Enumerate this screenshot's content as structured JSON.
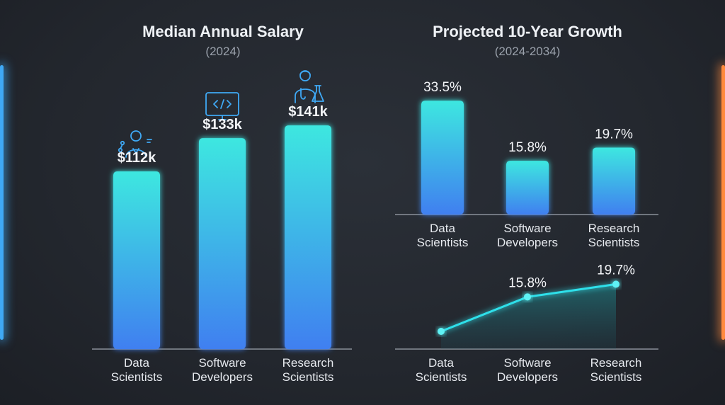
{
  "colors": {
    "bar_top": "#3ee7e0",
    "bar_bottom": "#3f7ff0",
    "line": "#2fe0ea",
    "axis": "#8a9099",
    "text": "#e6e9ee",
    "left_glow": "#3fa9f5",
    "right_glow": "#ff8a3d"
  },
  "icons": [
    "data-scientist-icon",
    "code-monitor-icon",
    "research-scientist-icon"
  ],
  "chart_data": [
    {
      "type": "bar",
      "title": "Median Annual Salary",
      "subtitle": "(2024)",
      "categories": [
        [
          "Data",
          "Scientists"
        ],
        [
          "Software",
          "Developers"
        ],
        [
          "Research",
          "Scientists"
        ]
      ],
      "values": [
        112,
        133,
        141
      ],
      "value_labels": [
        "$112k",
        "$133k",
        "$141k"
      ],
      "grid": false
    },
    {
      "type": "bar",
      "title": "Projected 10-Year Growth",
      "subtitle": "(2024-2034)",
      "categories": [
        [
          "Data",
          "Scientists"
        ],
        [
          "Software",
          "Developers"
        ],
        [
          "Research",
          "Scientists"
        ]
      ],
      "values": [
        33.5,
        15.8,
        19.7
      ],
      "value_labels": [
        "33.5%",
        "15.8%",
        "19.7%"
      ],
      "grid": false
    },
    {
      "type": "line",
      "categories": [
        [
          "Data",
          "Scientists"
        ],
        [
          "Software",
          "Developers"
        ],
        [
          "Research",
          "Scientists"
        ]
      ],
      "values": [
        null,
        15.8,
        19.7
      ],
      "value_labels": [
        "",
        "15.8%",
        "19.7%"
      ],
      "grid": false
    }
  ]
}
